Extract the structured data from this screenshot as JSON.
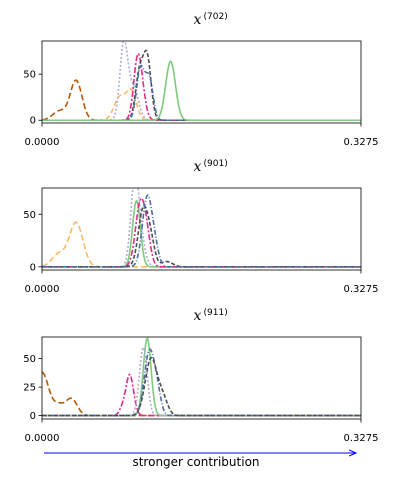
{
  "colors": {
    "arrow": "#0000ff",
    "axis": "#000000"
  },
  "caption": {
    "text": "stronger contribution"
  },
  "chart_data": [
    {
      "type": "line",
      "title": {
        "main": "x",
        "sup": "(702)"
      },
      "xlim": [
        0.0,
        0.3275
      ],
      "ylim": [
        -3,
        86
      ],
      "x_tick_labels": [
        "0.0000",
        "0.3275"
      ],
      "y_ticks": [
        0,
        50
      ],
      "series": [
        {
          "color": "#b35806",
          "dash": "6,3",
          "peaks": [
            [
              0.035,
              43,
              0.006
            ],
            [
              0.018,
              10,
              0.007
            ]
          ]
        },
        {
          "color": "#fdb863",
          "dash": "5,3",
          "peaks": [
            [
              0.08,
              25,
              0.006
            ],
            [
              0.092,
              30,
              0.005
            ]
          ]
        },
        {
          "color": "#b2abd2",
          "dash": "2,2",
          "peaks": [
            [
              0.084,
              83,
              0.004
            ],
            [
              0.094,
              35,
              0.005
            ]
          ]
        },
        {
          "color": "#e7298a",
          "dash": "6,2,2,2",
          "peaks": [
            [
              0.098,
              62,
              0.004
            ],
            [
              0.103,
              20,
              0.004
            ]
          ]
        },
        {
          "color": "#4d4d4d",
          "dash": "4,2",
          "peaks": [
            [
              0.1,
              50,
              0.004
            ],
            [
              0.108,
              67,
              0.004
            ]
          ]
        },
        {
          "color": "#4a6fa5",
          "dash": "5,2,1,2",
          "peaks": [
            [
              0.101,
              55,
              0.004
            ],
            [
              0.11,
              45,
              0.004
            ]
          ]
        },
        {
          "color": "#7fc97f",
          "dash": "",
          "peaks": [
            [
              0.132,
              64,
              0.005
            ]
          ]
        }
      ]
    },
    {
      "type": "line",
      "title": {
        "main": "x",
        "sup": "(901)"
      },
      "xlim": [
        0.0,
        0.3275
      ],
      "ylim": [
        -3,
        75
      ],
      "x_tick_labels": [
        "0.0000",
        "0.3275"
      ],
      "y_ticks": [
        0,
        50
      ],
      "series": [
        {
          "color": "#fdb863",
          "dash": "6,3",
          "peaks": [
            [
              0.035,
              42,
              0.007
            ],
            [
              0.017,
              12,
              0.007
            ]
          ]
        },
        {
          "color": "#b2abd2",
          "dash": "2,2",
          "peaks": [
            [
              0.095,
              70,
              0.004
            ],
            [
              0.1,
              30,
              0.005
            ]
          ]
        },
        {
          "color": "#7fc97f",
          "dash": "",
          "peaks": [
            [
              0.097,
              63,
              0.004
            ]
          ]
        },
        {
          "color": "#e7298a",
          "dash": "6,2,2,2",
          "peaks": [
            [
              0.101,
              60,
              0.005
            ],
            [
              0.108,
              20,
              0.004
            ]
          ]
        },
        {
          "color": "#4d4d4d",
          "dash": "4,2",
          "peaks": [
            [
              0.104,
              55,
              0.005
            ],
            [
              0.112,
              20,
              0.004
            ],
            [
              0.128,
              5,
              0.006
            ]
          ]
        },
        {
          "color": "#4a6fa5",
          "dash": "5,2,1,2",
          "peaks": [
            [
              0.108,
              66,
              0.005
            ],
            [
              0.116,
              15,
              0.004
            ]
          ]
        }
      ]
    },
    {
      "type": "line",
      "title": {
        "main": "x",
        "sup": "(911)"
      },
      "xlim": [
        0.0,
        0.3275
      ],
      "ylim": [
        -3,
        69
      ],
      "x_tick_labels": [
        "0.0000",
        "0.3275"
      ],
      "y_ticks": [
        0,
        25,
        50
      ],
      "series": [
        {
          "color": "#b35806",
          "dash": "6,3",
          "peaks": [
            [
              0.0,
              38,
              0.007
            ],
            [
              0.03,
              15,
              0.006
            ],
            [
              0.017,
              8,
              0.005
            ]
          ]
        },
        {
          "color": "#e7298a",
          "dash": "6,2,2,2",
          "peaks": [
            [
              0.09,
              36,
              0.004
            ],
            [
              0.082,
              5,
              0.003
            ]
          ]
        },
        {
          "color": "#7fc97f",
          "dash": "",
          "peaks": [
            [
              0.108,
              68,
              0.004
            ]
          ]
        },
        {
          "color": "#b2abd2",
          "dash": "2,2",
          "peaks": [
            [
              0.104,
              60,
              0.004
            ]
          ]
        },
        {
          "color": "#4a6fa5",
          "dash": "5,2,1,2",
          "peaks": [
            [
              0.11,
              55,
              0.005
            ],
            [
              0.118,
              20,
              0.004
            ]
          ]
        },
        {
          "color": "#4d4d4d",
          "dash": "4,2",
          "peaks": [
            [
              0.112,
              50,
              0.006
            ],
            [
              0.124,
              15,
              0.005
            ]
          ]
        }
      ]
    }
  ]
}
